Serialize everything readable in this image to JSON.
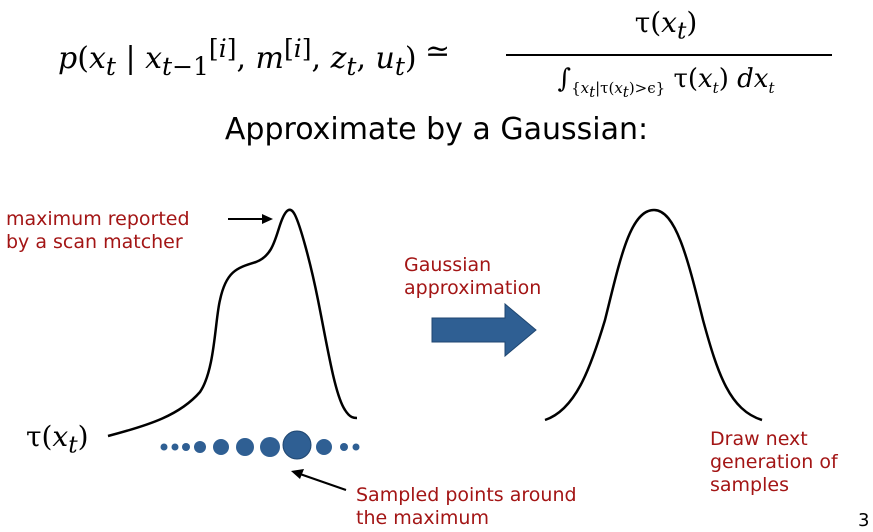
{
  "formula": {
    "lhs": "p(x",
    "lhs_rest": " | x",
    "lhs_args": ", m",
    "lhs_args_rest": ", z",
    "approx": "≃",
    "numerator": "τ(x",
    "denominator_integral": "∫",
    "denominator_sub": "{x",
    "denominator_body": " τ(x"
  },
  "subtitle": "Approximate by a Gaussian:",
  "labels": {
    "maximum_line1": "maximum reported",
    "maximum_line2": "by a scan matcher",
    "gaussian_line1": "Gaussian",
    "gaussian_line2": "approximation",
    "sampled_line1": "Sampled points around",
    "sampled_line2": "the maximum",
    "draw_line1": "Draw next",
    "draw_line2": "generation of",
    "draw_line3": "samples",
    "tau": "τ(x"
  },
  "page_number": "3",
  "colors": {
    "accent_text": "#a31515",
    "arrow_fill": "#2f5f93",
    "dots": "#2f5f93"
  }
}
